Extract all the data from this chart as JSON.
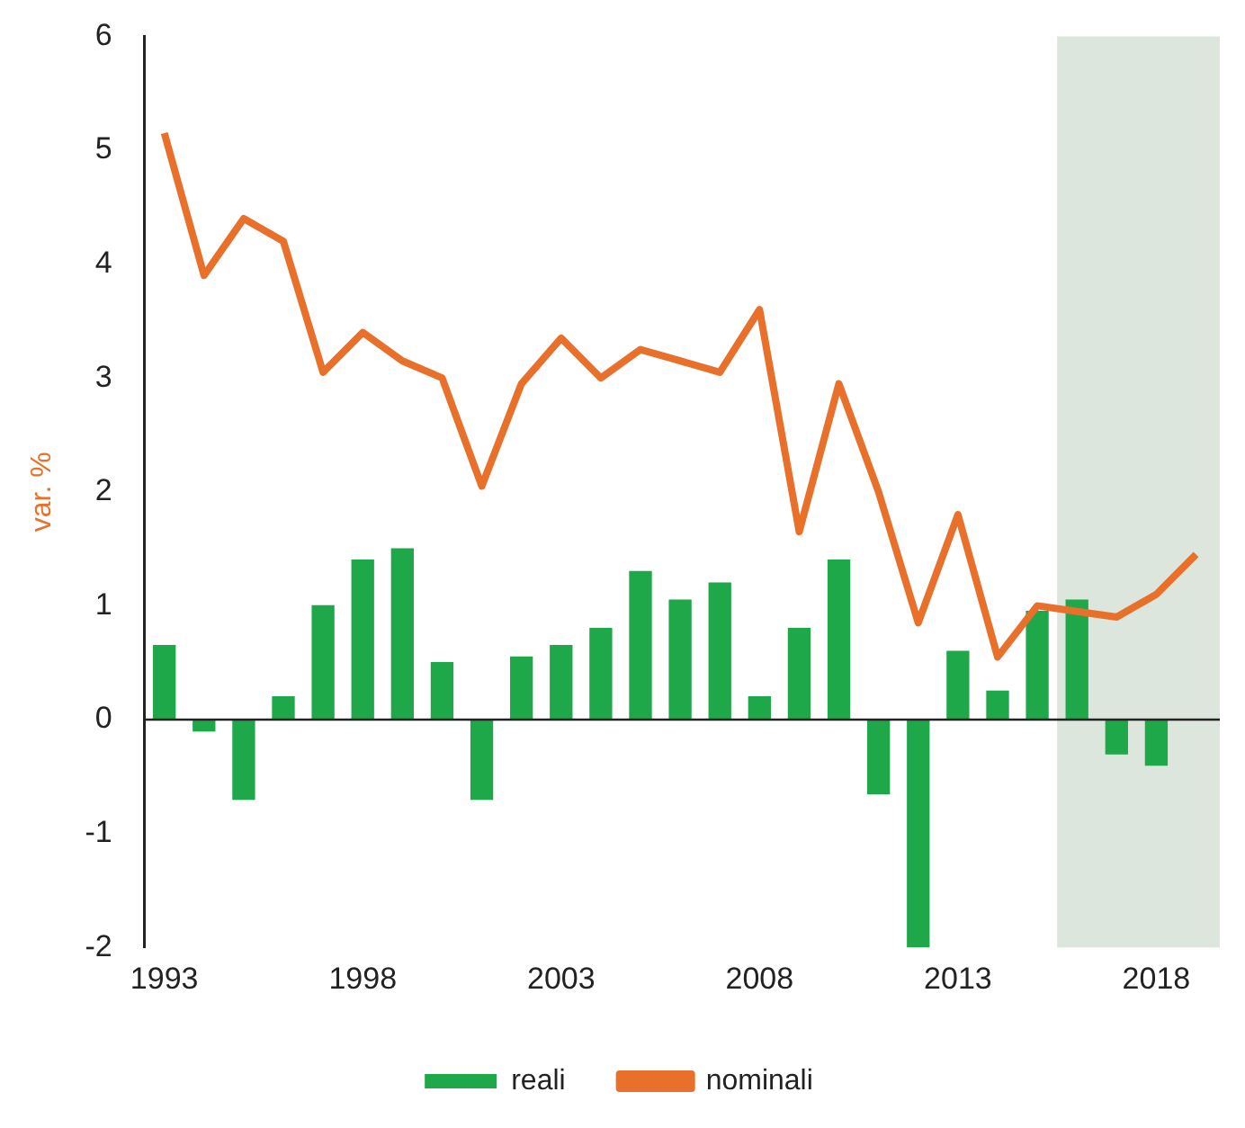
{
  "chart_data": {
    "type": "bar",
    "ylabel": "var. %",
    "x": [
      1993,
      1994,
      1995,
      1996,
      1997,
      1998,
      1999,
      2000,
      2001,
      2002,
      2003,
      2004,
      2005,
      2006,
      2007,
      2008,
      2009,
      2010,
      2011,
      2012,
      2013,
      2014,
      2015,
      2016,
      2017,
      2018,
      2019
    ],
    "series": [
      {
        "name": "reali",
        "color": "#1fa84a",
        "values": [
          0.65,
          -0.1,
          -0.7,
          0.2,
          1.0,
          1.4,
          1.5,
          0.5,
          -0.7,
          0.55,
          0.65,
          0.8,
          1.3,
          1.05,
          1.2,
          0.2,
          0.8,
          1.4,
          -0.65,
          -2.0,
          0.6,
          0.25,
          0.95,
          1.05,
          -0.3,
          -0.4,
          null
        ]
      },
      {
        "name": "nominali",
        "type": "line",
        "color": "#e8702a",
        "values": [
          5.15,
          3.9,
          4.4,
          4.2,
          3.05,
          3.4,
          3.15,
          3.0,
          2.05,
          2.95,
          3.35,
          3.0,
          3.25,
          3.15,
          3.05,
          3.6,
          1.65,
          2.95,
          2.0,
          0.85,
          1.8,
          0.55,
          1.0,
          0.95,
          0.9,
          1.1,
          1.45
        ]
      }
    ],
    "xlim": [
      1992.5,
      2019.6
    ],
    "xticks": [
      1993,
      1998,
      2003,
      2008,
      2013,
      2018
    ],
    "ylim": [
      -2,
      6
    ],
    "yticks": [
      -2,
      -1,
      0,
      1,
      2,
      3,
      4,
      5,
      6
    ],
    "bands": [
      {
        "axis": "x",
        "from": 2015.5,
        "to": 2019.6,
        "color": "#dde6dc"
      }
    ],
    "ref_lines": [
      {
        "axis": "y",
        "value": 0,
        "color": "#222222"
      }
    ],
    "grid": false,
    "legend": "bottom",
    "marker": "none"
  }
}
